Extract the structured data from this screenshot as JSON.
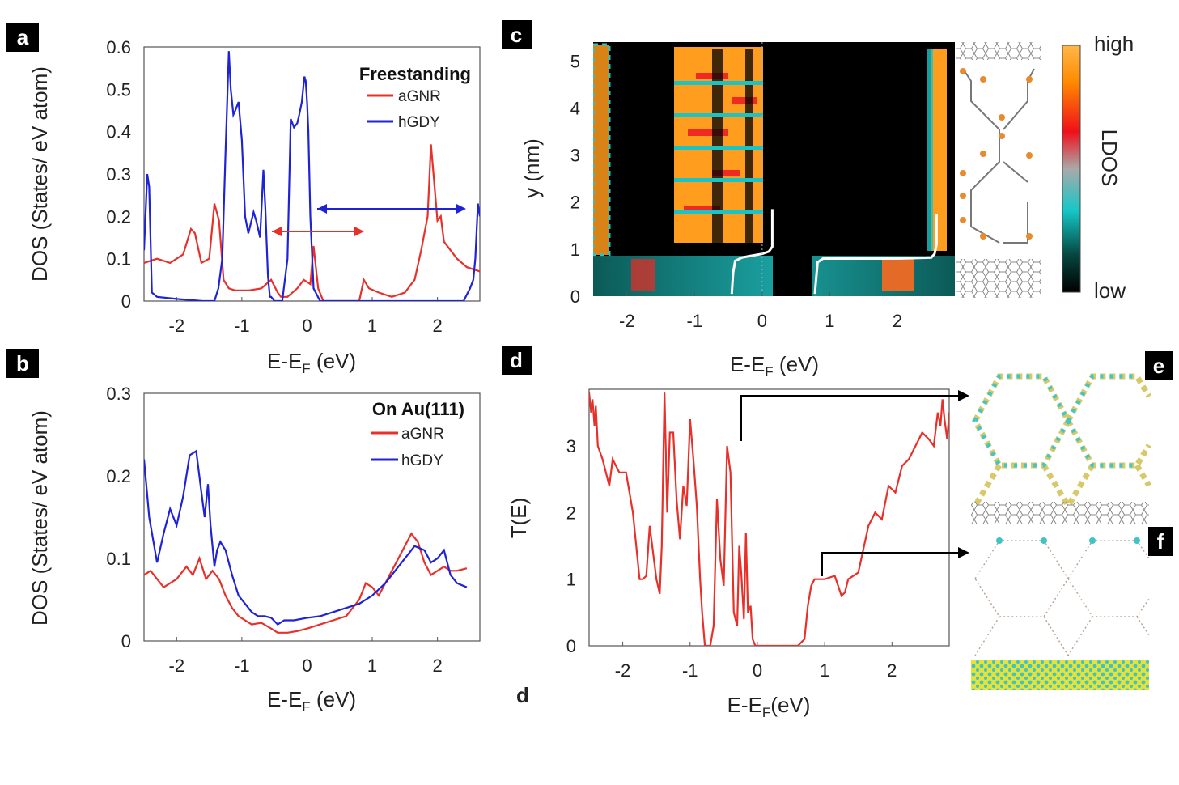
{
  "colors": {
    "aGNR": "#e8302a",
    "hGDY": "#1f23d6",
    "transmission": "#e8302a",
    "badge": "#000000"
  },
  "panel_labels": {
    "a": "a",
    "b": "b",
    "c": "c",
    "d": "d",
    "d_footer": "d",
    "e": "e",
    "f": "f"
  },
  "chart_data": [
    {
      "id": "a",
      "type": "line",
      "legend_title": "Freestanding",
      "xlabel": "E-E",
      "xlabel_sub": "F",
      "xlabel_unit": " (eV)",
      "ylabel": "DOS (States/ eV atom)",
      "xlim": [
        -2.5,
        2.65
      ],
      "ylim": [
        0,
        0.6
      ],
      "xticks": [
        -2,
        -1,
        0,
        1,
        2
      ],
      "yticks": [
        0,
        0.1,
        0.2,
        0.3,
        0.4,
        0.5,
        0.6
      ],
      "ytick_labels": [
        "0",
        "0.1",
        "0.2",
        "0.3",
        "0.4",
        "0.5",
        "0.6"
      ],
      "series": [
        {
          "name": "aGNR",
          "x": [
            -2.5,
            -2.3,
            -2.1,
            -1.9,
            -1.78,
            -1.72,
            -1.62,
            -1.5,
            -1.42,
            -1.35,
            -1.28,
            -1.2,
            -1.1,
            -0.9,
            -0.7,
            -0.55,
            -0.45,
            -0.4,
            -0.3,
            -0.15,
            -0.05,
            0.05,
            0.1,
            0.17,
            0.25,
            0.5,
            0.8,
            0.87,
            0.95,
            1.1,
            1.3,
            1.5,
            1.65,
            1.75,
            1.85,
            1.9,
            1.95,
            2.0,
            2.05,
            2.1,
            2.2,
            2.3,
            2.45,
            2.65
          ],
          "y": [
            0.09,
            0.1,
            0.09,
            0.11,
            0.17,
            0.16,
            0.09,
            0.1,
            0.23,
            0.19,
            0.05,
            0.03,
            0.025,
            0.025,
            0.03,
            0.05,
            0.02,
            0.01,
            0.01,
            0.03,
            0.05,
            0.04,
            0.13,
            0.03,
            0.0,
            0.0,
            0.0,
            0.05,
            0.03,
            0.02,
            0.01,
            0.02,
            0.05,
            0.12,
            0.2,
            0.37,
            0.28,
            0.19,
            0.2,
            0.14,
            0.12,
            0.1,
            0.08,
            0.07
          ]
        },
        {
          "name": "hGDY",
          "x": [
            -2.5,
            -2.45,
            -2.42,
            -2.38,
            -2.3,
            -2.0,
            -1.6,
            -1.42,
            -1.36,
            -1.3,
            -1.25,
            -1.2,
            -1.17,
            -1.13,
            -1.1,
            -1.05,
            -1.0,
            -0.95,
            -0.9,
            -0.82,
            -0.78,
            -0.72,
            -0.67,
            -0.64,
            -0.6,
            -0.57,
            -0.55,
            -0.5,
            -0.45,
            -0.38,
            -0.3,
            -0.25,
            -0.2,
            -0.15,
            -0.12,
            -0.08,
            -0.04,
            -0.02,
            0.0,
            0.02,
            0.05,
            0.1,
            0.2,
            0.5,
            1.0,
            1.5,
            2.0,
            2.4,
            2.5,
            2.55,
            2.58,
            2.62,
            2.65
          ],
          "y": [
            0.12,
            0.3,
            0.27,
            0.02,
            0.01,
            0.005,
            0.0,
            0.0,
            0.03,
            0.1,
            0.35,
            0.59,
            0.5,
            0.44,
            0.45,
            0.47,
            0.38,
            0.2,
            0.16,
            0.21,
            0.19,
            0.15,
            0.31,
            0.22,
            0.06,
            0.01,
            0.01,
            0.0,
            0.0,
            0.0,
            0.1,
            0.43,
            0.41,
            0.42,
            0.44,
            0.47,
            0.53,
            0.52,
            0.47,
            0.4,
            0.2,
            0.03,
            0.0,
            0.0,
            0.0,
            0.0,
            0.0,
            0.0,
            0.03,
            0.05,
            0.1,
            0.23,
            0.2
          ]
        }
      ],
      "annotations": [
        "gap arrow hGDY from 0.1 to 2.45 eV at 0.215",
        "gap arrow aGNR from -0.55 to 0.87 eV at 0.165"
      ]
    },
    {
      "id": "b",
      "type": "line",
      "legend_title": "On Au(111)",
      "xlabel": "E-E",
      "xlabel_sub": "F",
      "xlabel_unit": " (eV)",
      "ylabel": "DOS (States/ eV atom)",
      "xlim": [
        -2.5,
        2.65
      ],
      "ylim": [
        0,
        0.3
      ],
      "xticks": [
        -2,
        -1,
        0,
        1,
        2
      ],
      "yticks": [
        0,
        0.1,
        0.2,
        0.3
      ],
      "ytick_labels": [
        "0",
        "0.1",
        "0.2",
        "0.3"
      ],
      "series": [
        {
          "name": "aGNR",
          "x": [
            -2.5,
            -2.4,
            -2.2,
            -2.0,
            -1.85,
            -1.75,
            -1.65,
            -1.55,
            -1.45,
            -1.35,
            -1.25,
            -1.15,
            -1.05,
            -0.95,
            -0.85,
            -0.7,
            -0.55,
            -0.45,
            -0.3,
            -0.15,
            0.0,
            0.2,
            0.4,
            0.6,
            0.8,
            0.9,
            1.0,
            1.1,
            1.2,
            1.4,
            1.6,
            1.7,
            1.8,
            1.9,
            2.0,
            2.1,
            2.2,
            2.3,
            2.45
          ],
          "y": [
            0.08,
            0.085,
            0.065,
            0.075,
            0.09,
            0.08,
            0.1,
            0.075,
            0.085,
            0.075,
            0.055,
            0.04,
            0.03,
            0.025,
            0.02,
            0.022,
            0.015,
            0.01,
            0.01,
            0.012,
            0.015,
            0.02,
            0.025,
            0.03,
            0.05,
            0.07,
            0.065,
            0.055,
            0.07,
            0.1,
            0.13,
            0.12,
            0.095,
            0.08,
            0.085,
            0.09,
            0.085,
            0.085,
            0.088
          ]
        },
        {
          "name": "hGDY",
          "x": [
            -2.5,
            -2.42,
            -2.3,
            -2.2,
            -2.1,
            -2.0,
            -1.9,
            -1.8,
            -1.7,
            -1.62,
            -1.57,
            -1.52,
            -1.48,
            -1.42,
            -1.38,
            -1.33,
            -1.25,
            -1.15,
            -1.05,
            -0.95,
            -0.85,
            -0.75,
            -0.65,
            -0.55,
            -0.45,
            -0.35,
            -0.2,
            0.0,
            0.2,
            0.4,
            0.6,
            0.8,
            1.0,
            1.2,
            1.4,
            1.55,
            1.65,
            1.8,
            1.9,
            2.0,
            2.1,
            2.2,
            2.3,
            2.45
          ],
          "y": [
            0.22,
            0.15,
            0.095,
            0.13,
            0.16,
            0.14,
            0.175,
            0.225,
            0.23,
            0.18,
            0.15,
            0.19,
            0.14,
            0.09,
            0.11,
            0.12,
            0.11,
            0.08,
            0.055,
            0.045,
            0.035,
            0.03,
            0.03,
            0.028,
            0.02,
            0.025,
            0.025,
            0.028,
            0.03,
            0.035,
            0.04,
            0.045,
            0.055,
            0.07,
            0.09,
            0.105,
            0.115,
            0.11,
            0.095,
            0.1,
            0.11,
            0.08,
            0.07,
            0.065
          ]
        }
      ]
    },
    {
      "id": "c",
      "type": "heatmap",
      "xlabel": "E-E",
      "xlabel_sub": "F",
      "xlabel_unit": " (eV)",
      "ylabel": "y (nm)",
      "xlim": [
        -2.5,
        2.85
      ],
      "ylim": [
        0,
        5.4
      ],
      "xticks": [
        -2,
        -1,
        0,
        1,
        2
      ],
      "yticks": [
        0,
        1,
        2,
        3,
        4,
        5
      ],
      "colorbar": {
        "label": "LDOS",
        "high": "high",
        "low": "low"
      },
      "bright_bands_eV": [
        [
          -2.5,
          -2.3
        ],
        [
          -1.3,
          -0.2
        ],
        [
          -0.1,
          0.2
        ],
        [
          2.5,
          2.85
        ]
      ],
      "band_edges": [
        {
          "x": [
            -0.45,
            -0.43,
            -0.4,
            -0.3,
            -0.2,
            0.0,
            0.1,
            0.15,
            0.15
          ],
          "y": [
            0.05,
            0.5,
            0.75,
            0.82,
            0.85,
            0.9,
            0.95,
            1.05,
            1.85
          ]
        },
        {
          "x": [
            0.78,
            0.8,
            0.82,
            0.9,
            1.3,
            2.0,
            2.5,
            2.55,
            2.58,
            2.58
          ],
          "y": [
            0.05,
            0.4,
            0.72,
            0.8,
            0.8,
            0.8,
            0.82,
            0.9,
            1.1,
            1.75
          ]
        }
      ]
    },
    {
      "id": "d",
      "type": "line",
      "xlabel": "E-E",
      "xlabel_sub": "F",
      "xlabel_unit": "(eV)",
      "ylabel": "T(E)",
      "xlim": [
        -2.5,
        2.85
      ],
      "ylim": [
        0,
        3.85
      ],
      "xticks": [
        -2,
        -1,
        0,
        1,
        2
      ],
      "yticks": [
        0,
        1,
        2,
        3
      ],
      "series": [
        {
          "name": "T(E)",
          "x": [
            -2.5,
            -2.47,
            -2.45,
            -2.42,
            -2.4,
            -2.37,
            -2.3,
            -2.2,
            -2.15,
            -2.05,
            -1.95,
            -1.85,
            -1.75,
            -1.7,
            -1.65,
            -1.6,
            -1.5,
            -1.45,
            -1.42,
            -1.38,
            -1.34,
            -1.3,
            -1.25,
            -1.2,
            -1.15,
            -1.1,
            -1.05,
            -1.0,
            -0.95,
            -0.9,
            -0.85,
            -0.82,
            -0.78,
            -0.74,
            -0.7,
            -0.65,
            -0.6,
            -0.55,
            -0.5,
            -0.45,
            -0.4,
            -0.35,
            -0.3,
            -0.27,
            -0.24,
            -0.2,
            -0.17,
            -0.14,
            -0.1,
            -0.07,
            -0.03,
            0.0,
            0.05,
            0.1,
            0.3,
            0.6,
            0.7,
            0.75,
            0.8,
            0.85,
            0.9,
            1.0,
            1.15,
            1.25,
            1.3,
            1.35,
            1.5,
            1.65,
            1.75,
            1.85,
            1.95,
            2.05,
            2.15,
            2.25,
            2.35,
            2.45,
            2.55,
            2.62,
            2.68,
            2.72,
            2.75,
            2.78,
            2.82,
            2.85
          ],
          "y": [
            3.8,
            3.5,
            3.7,
            3.3,
            3.6,
            3.0,
            2.8,
            2.4,
            2.8,
            2.6,
            2.6,
            2.0,
            1.0,
            1.0,
            1.05,
            1.8,
            1.0,
            0.78,
            1.5,
            3.8,
            2.0,
            3.2,
            3.2,
            2.2,
            1.6,
            2.4,
            2.1,
            3.4,
            2.8,
            2.1,
            1.0,
            0.5,
            0.0,
            0.0,
            0.0,
            0.3,
            2.2,
            1.3,
            0.9,
            3.0,
            2.6,
            0.5,
            0.3,
            1.5,
            1.1,
            0.4,
            1.7,
            0.5,
            0.6,
            0.1,
            0.0,
            0.0,
            0.0,
            0.0,
            0.0,
            0.0,
            0.1,
            0.6,
            0.9,
            1.0,
            1.0,
            1.0,
            1.05,
            0.75,
            0.8,
            1.0,
            1.1,
            1.8,
            2.0,
            1.9,
            2.4,
            2.3,
            2.7,
            2.8,
            3.0,
            3.2,
            3.1,
            3.0,
            3.5,
            3.3,
            3.7,
            3.4,
            3.1,
            3.5
          ]
        }
      ],
      "annotations": [
        "arrow from E=-0.25, T=3.0 to panel e",
        "arrow from E=1.0, T=1.0 to panel f"
      ]
    }
  ]
}
